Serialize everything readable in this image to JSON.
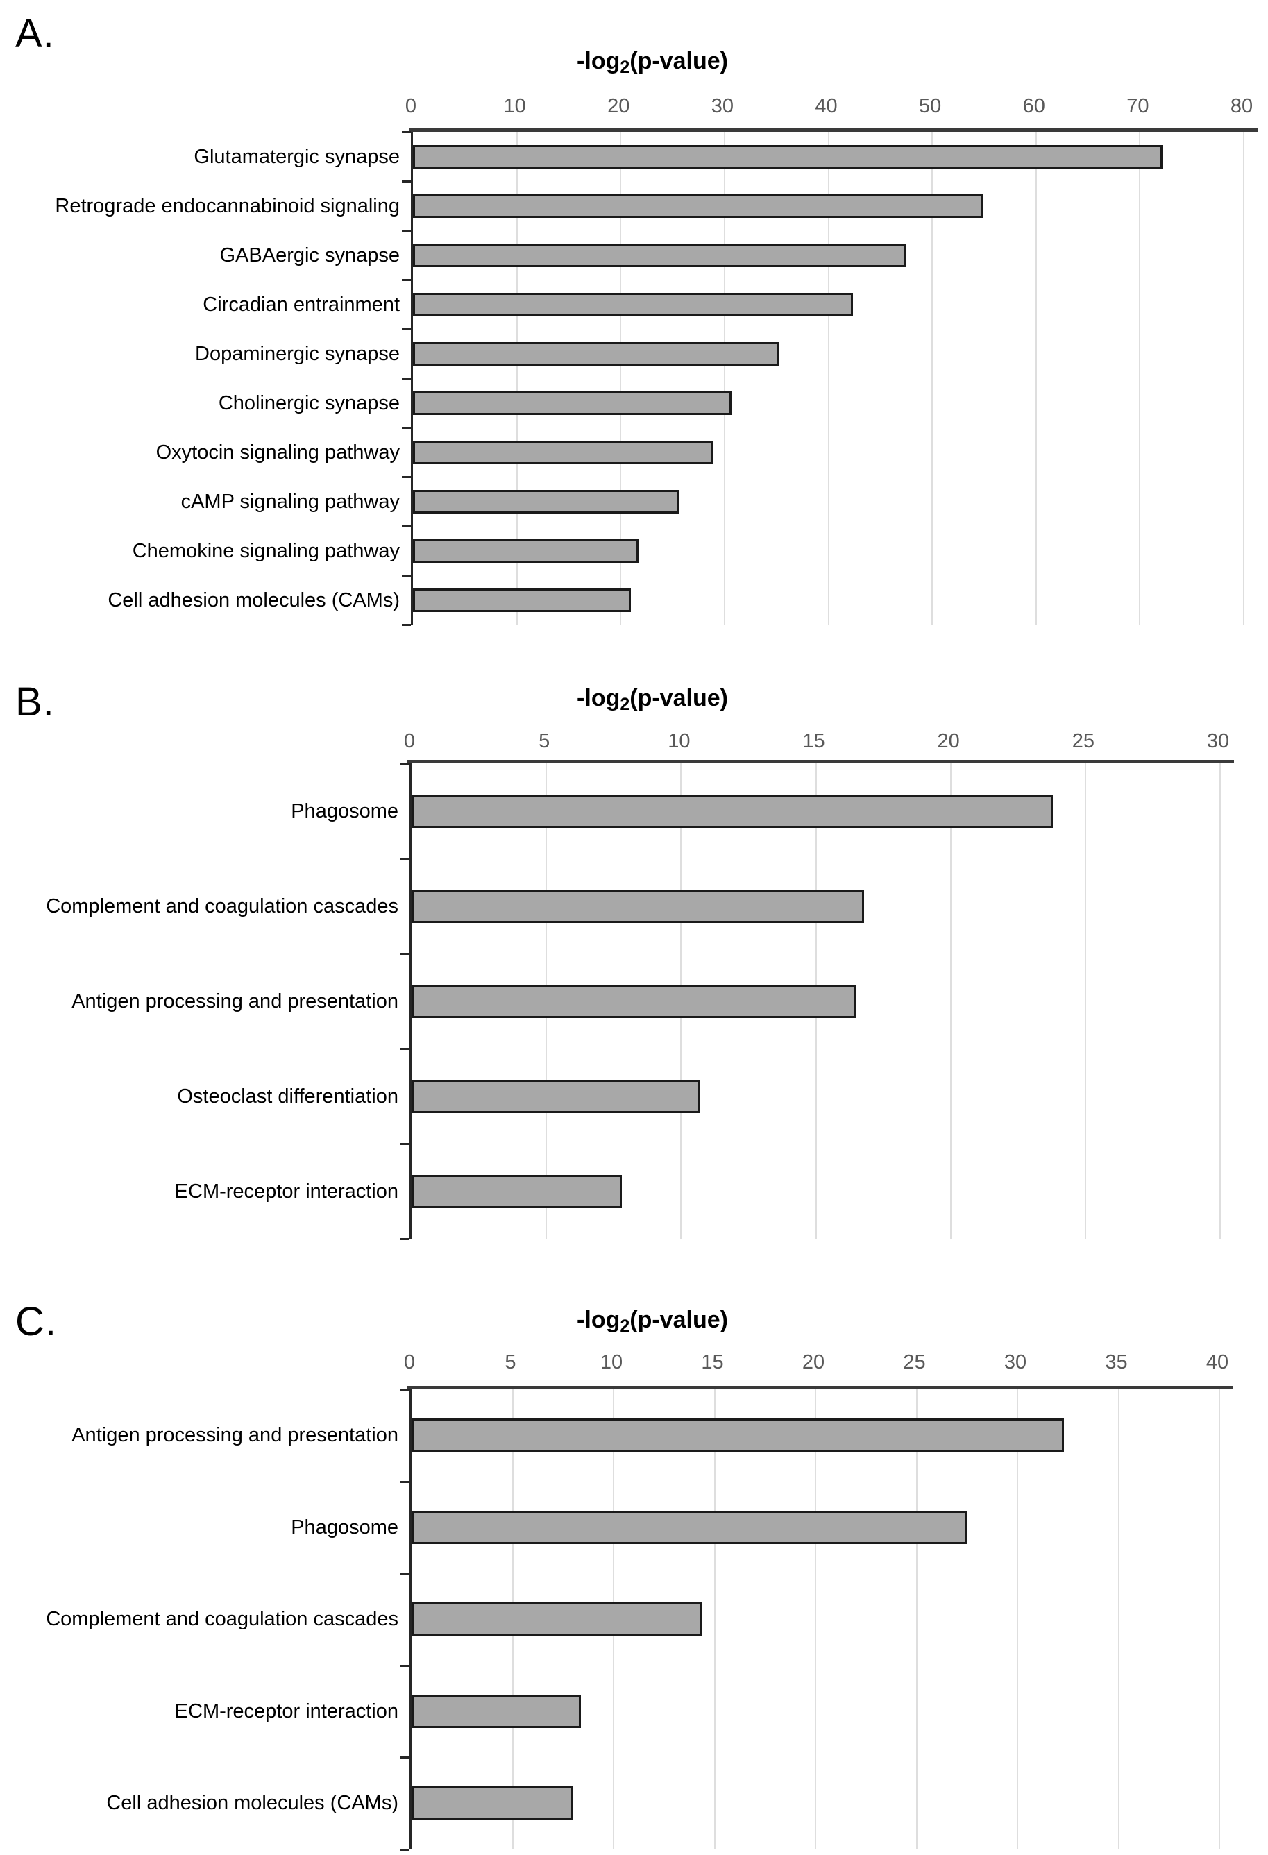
{
  "page": {
    "background": "#ffffff",
    "figure_type": "three-panel horizontal bar charts"
  },
  "panels": [
    {
      "letter": "A."
    },
    {
      "letter": "B."
    },
    {
      "letter": "C."
    }
  ],
  "chart_data": [
    {
      "type": "bar",
      "orientation": "horizontal",
      "panel_letter": "A.",
      "title": "-log2(p-value)",
      "title_rich": {
        "prefix": "-log",
        "subscript": "2",
        "suffix": "(p-value)"
      },
      "axis": {
        "side": "top",
        "min": 0,
        "max": 80,
        "tick_step": 10,
        "tick_labels": [
          "0",
          "10",
          "20",
          "30",
          "40",
          "50",
          "60",
          "70",
          "80"
        ]
      },
      "grid": "vertical",
      "legend": false,
      "categories": [
        "Glutamatergic synapse",
        "Retrograde endocannabinoid signaling",
        "GABAergic synapse",
        "Circadian entrainment",
        "Dopaminergic synapse",
        "Cholinergic synapse",
        "Oxytocin signaling pathway",
        "cAMP signaling pathway",
        "Chemokine signaling pathway",
        "Cell adhesion molecules (CAMs)"
      ],
      "values": [
        72.2,
        54.9,
        47.5,
        42.4,
        35.2,
        30.7,
        28.9,
        25.6,
        21.7,
        21.0
      ],
      "colors": {
        "bar_fill": "#a8a8a8",
        "bar_border": "#1a1a1a",
        "gridline": "#dedede",
        "axis_line": "#3a3a3a",
        "tick_label": "#595959",
        "category_label": "#000000"
      }
    },
    {
      "type": "bar",
      "orientation": "horizontal",
      "panel_letter": "B.",
      "title": "-log2(p-value)",
      "title_rich": {
        "prefix": "-log",
        "subscript": "2",
        "suffix": "(p-value)"
      },
      "axis": {
        "side": "top",
        "min": 0,
        "max": 30,
        "tick_step": 5,
        "tick_labels": [
          "0",
          "5",
          "10",
          "15",
          "20",
          "25",
          "30"
        ]
      },
      "grid": "vertical",
      "legend": false,
      "categories": [
        "Phagosome",
        "Complement and coagulation cascades",
        "Antigen processing and presentation",
        "Osteoclast differentiation",
        "ECM-receptor interaction"
      ],
      "values": [
        23.8,
        16.8,
        16.5,
        10.7,
        7.8
      ],
      "colors": {
        "bar_fill": "#a8a8a8",
        "bar_border": "#1a1a1a",
        "gridline": "#dedede",
        "axis_line": "#3a3a3a",
        "tick_label": "#595959",
        "category_label": "#000000"
      }
    },
    {
      "type": "bar",
      "orientation": "horizontal",
      "panel_letter": "C.",
      "title": "-log2(p-value)",
      "title_rich": {
        "prefix": "-log",
        "subscript": "2",
        "suffix": "(p-value)"
      },
      "axis": {
        "side": "top",
        "min": 0,
        "max": 40,
        "tick_step": 5,
        "tick_labels": [
          "0",
          "5",
          "10",
          "15",
          "20",
          "25",
          "30",
          "35",
          "40"
        ]
      },
      "grid": "vertical",
      "legend": false,
      "categories": [
        "Antigen processing and presentation",
        "Phagosome",
        "Complement and coagulation cascades",
        "ECM-receptor interaction",
        "Cell adhesion molecules (CAMs)"
      ],
      "values": [
        32.3,
        27.5,
        14.4,
        8.4,
        8.0
      ],
      "colors": {
        "bar_fill": "#a8a8a8",
        "bar_border": "#1a1a1a",
        "gridline": "#dedede",
        "axis_line": "#3a3a3a",
        "tick_label": "#595959",
        "category_label": "#000000"
      }
    }
  ]
}
